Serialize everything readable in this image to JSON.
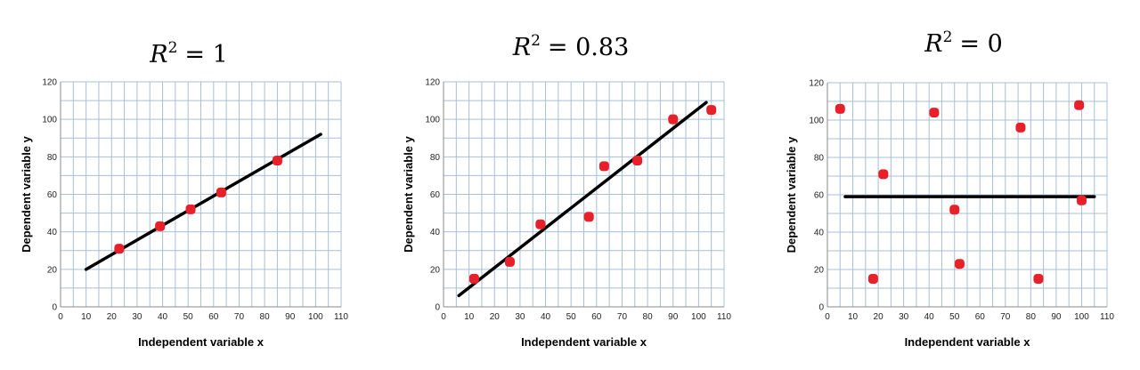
{
  "colors": {
    "grid": "#a9bfd6",
    "point": "#e8202a",
    "line": "#000000"
  },
  "chart_data": [
    {
      "type": "scatter",
      "title": {
        "letter": "R",
        "sup": "2",
        "eq": "= 1"
      },
      "xlabel": "Independent variable x",
      "ylabel": "Dependent variable y",
      "xlim": [
        0,
        110
      ],
      "ylim": [
        0,
        120
      ],
      "xticks": [
        "0",
        "10",
        "20",
        "30",
        "40",
        "50",
        "60",
        "70",
        "80",
        "90",
        "100",
        "110"
      ],
      "yticks": [
        "0",
        "20",
        "40",
        "60",
        "80",
        "100",
        "120"
      ],
      "grid": true,
      "points": [
        [
          23,
          31
        ],
        [
          39,
          43
        ],
        [
          51,
          52
        ],
        [
          63,
          61
        ],
        [
          85,
          78
        ]
      ],
      "fit_line": [
        [
          10,
          20
        ],
        [
          102,
          92
        ]
      ]
    },
    {
      "type": "scatter",
      "title": {
        "letter": "R",
        "sup": "2",
        "eq": "= 0.83"
      },
      "xlabel": "Independent variable x",
      "ylabel": "Dependent variable y",
      "xlim": [
        0,
        110
      ],
      "ylim": [
        0,
        120
      ],
      "xticks": [
        "0",
        "10",
        "20",
        "30",
        "40",
        "50",
        "60",
        "70",
        "80",
        "90",
        "100",
        "110"
      ],
      "yticks": [
        "0",
        "20",
        "40",
        "60",
        "80",
        "100",
        "120"
      ],
      "grid": true,
      "points": [
        [
          12,
          15
        ],
        [
          26,
          24
        ],
        [
          38,
          44
        ],
        [
          57,
          48
        ],
        [
          63,
          75
        ],
        [
          76,
          78
        ],
        [
          90,
          100
        ],
        [
          105,
          105
        ]
      ],
      "fit_line": [
        [
          6,
          6
        ],
        [
          103,
          109
        ]
      ]
    },
    {
      "type": "scatter",
      "title": {
        "letter": "R",
        "sup": "2",
        "eq": "= 0"
      },
      "xlabel": "Independent variable x",
      "ylabel": "Dependent variable y",
      "xlim": [
        0,
        110
      ],
      "ylim": [
        0,
        120
      ],
      "xticks": [
        "0",
        "10",
        "20",
        "30",
        "40",
        "50",
        "60",
        "70",
        "80",
        "90",
        "100",
        "110"
      ],
      "yticks": [
        "0",
        "20",
        "40",
        "60",
        "80",
        "100",
        "120"
      ],
      "grid": true,
      "points": [
        [
          5,
          106
        ],
        [
          18,
          15
        ],
        [
          22,
          71
        ],
        [
          42,
          104
        ],
        [
          50,
          52
        ],
        [
          52,
          23
        ],
        [
          76,
          96
        ],
        [
          83,
          15
        ],
        [
          99,
          108
        ],
        [
          100,
          57
        ]
      ],
      "fit_line": [
        [
          7,
          59
        ],
        [
          105,
          59
        ]
      ]
    }
  ]
}
